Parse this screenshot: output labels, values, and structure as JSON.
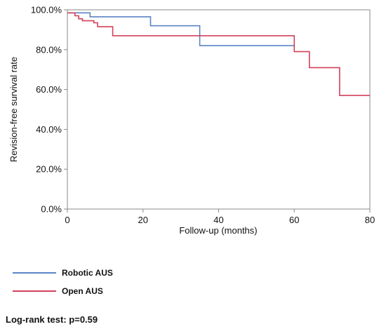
{
  "chart_data": {
    "type": "line",
    "step": true,
    "xlabel": "Follow-up (months)",
    "ylabel": "Revision-free survival rate",
    "xlim": [
      0,
      80
    ],
    "ylim": [
      0,
      100
    ],
    "x_ticks": [
      "0",
      "20",
      "40",
      "60",
      "80"
    ],
    "y_ticks": [
      "0.0%",
      "20.0%",
      "40.0%",
      "60.0%",
      "80.0%",
      "100.0%"
    ],
    "grid": false,
    "legend_position": "bottom-left",
    "series": [
      {
        "name": "Robotic AUS",
        "color": "#5b84c4",
        "x": [
          0,
          6,
          22,
          35,
          60
        ],
        "y": [
          98.5,
          96.5,
          92,
          82,
          82
        ]
      },
      {
        "name": "Open AUS",
        "color": "#d2405a",
        "x": [
          0,
          2,
          3,
          4,
          7,
          8,
          12,
          60,
          64,
          72,
          80
        ],
        "y": [
          98.5,
          97,
          95.5,
          94.5,
          93.5,
          91.5,
          87,
          79,
          71,
          57,
          57
        ]
      }
    ]
  },
  "footnote": "Log-rank test: p=0.59"
}
